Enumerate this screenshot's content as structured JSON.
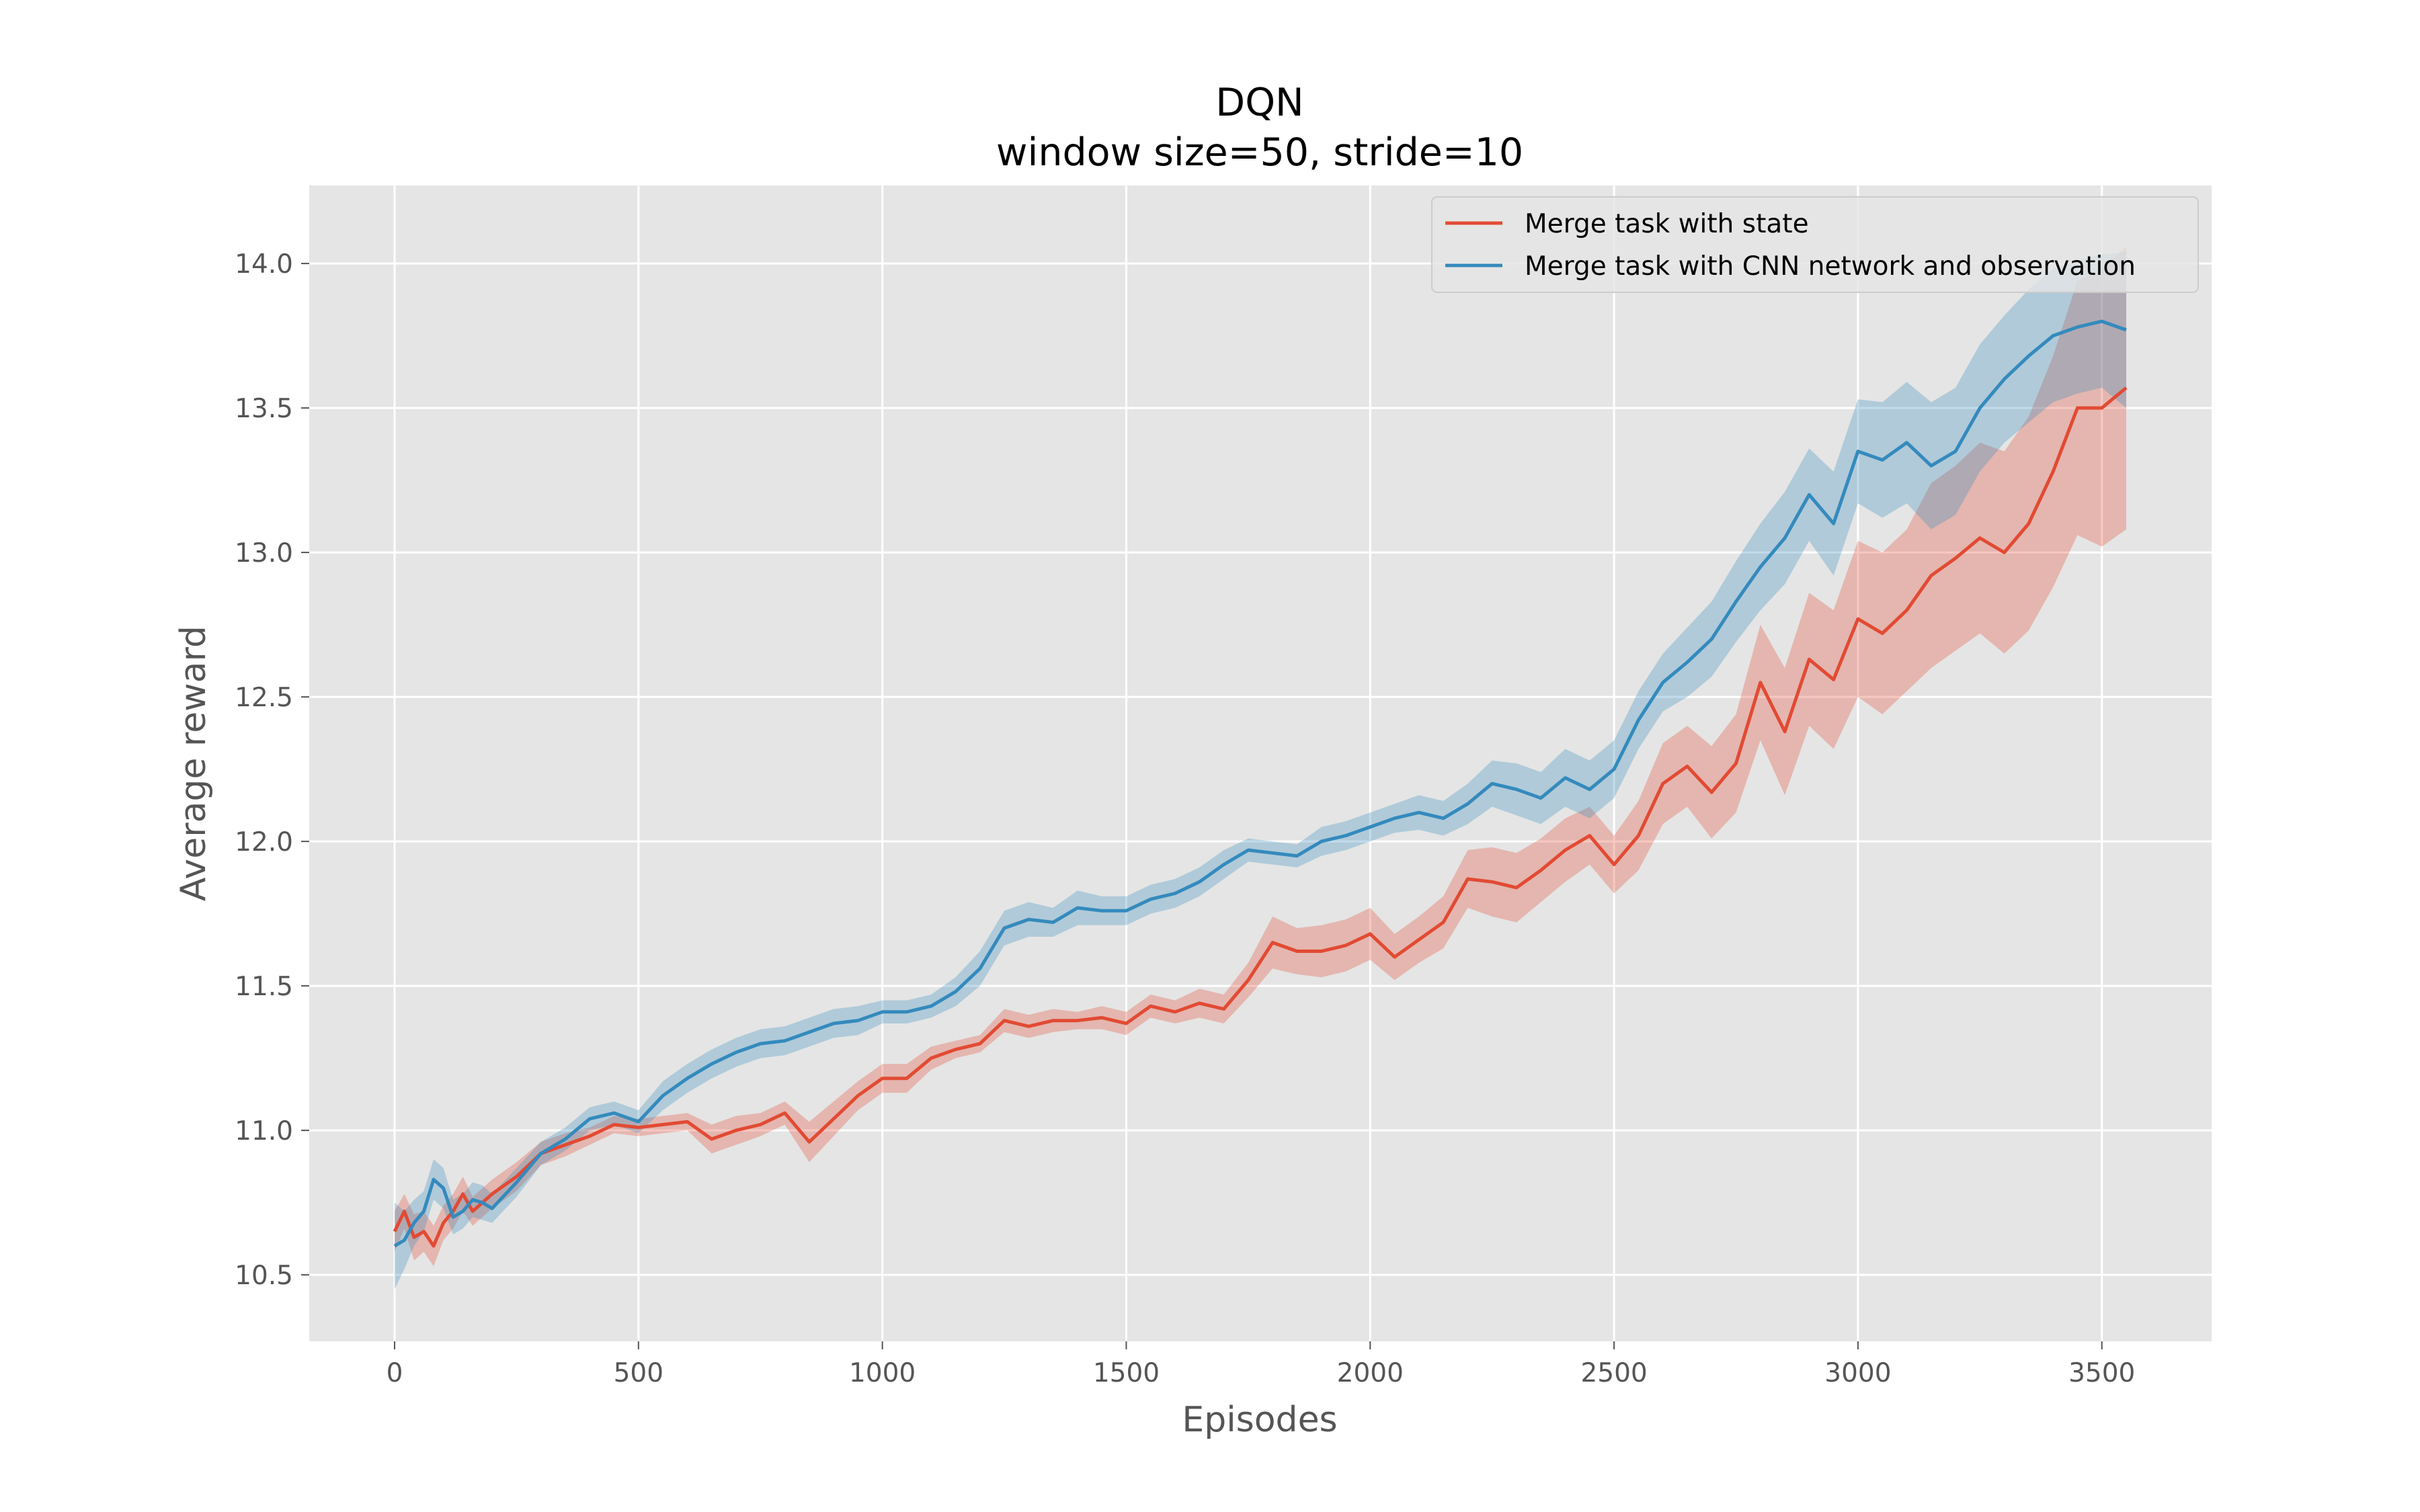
{
  "chart_data": {
    "type": "line",
    "title": "DQN",
    "subtitle": "window size=50, stride=10",
    "xlabel": "Episodes",
    "ylabel": "Average reward",
    "xlim": [
      -175,
      3725
    ],
    "ylim": [
      10.27,
      14.27
    ],
    "xticks": [
      0,
      500,
      1000,
      1500,
      2000,
      2500,
      3000,
      3500
    ],
    "yticks": [
      10.5,
      11.0,
      11.5,
      12.0,
      12.5,
      13.0,
      13.5,
      14.0
    ],
    "xtick_labels": [
      "0",
      "500",
      "1000",
      "1500",
      "2000",
      "2500",
      "3000",
      "3500"
    ],
    "ytick_labels": [
      "10.5",
      "11.0",
      "11.5",
      "12.0",
      "12.5",
      "13.0",
      "13.5",
      "14.0"
    ],
    "grid": true,
    "legend_position": "top-right",
    "series": [
      {
        "name": "Merge task with state",
        "color": "#e24a33",
        "band_color": "#e24a33",
        "x": [
          0,
          20,
          40,
          60,
          80,
          100,
          120,
          140,
          160,
          180,
          200,
          250,
          300,
          350,
          400,
          450,
          500,
          550,
          600,
          650,
          700,
          750,
          800,
          850,
          900,
          950,
          1000,
          1050,
          1100,
          1150,
          1200,
          1250,
          1300,
          1350,
          1400,
          1450,
          1500,
          1550,
          1600,
          1650,
          1700,
          1750,
          1800,
          1850,
          1900,
          1950,
          2000,
          2050,
          2100,
          2150,
          2200,
          2250,
          2300,
          2350,
          2400,
          2450,
          2500,
          2550,
          2600,
          2650,
          2700,
          2750,
          2800,
          2850,
          2900,
          2950,
          3000,
          3050,
          3100,
          3150,
          3200,
          3250,
          3300,
          3350,
          3400,
          3450,
          3500,
          3550
        ],
        "y": [
          10.65,
          10.72,
          10.63,
          10.65,
          10.6,
          10.68,
          10.72,
          10.78,
          10.72,
          10.75,
          10.78,
          10.84,
          10.92,
          10.95,
          10.98,
          11.02,
          11.01,
          11.02,
          11.03,
          10.97,
          11.0,
          11.02,
          11.06,
          10.96,
          11.04,
          11.12,
          11.18,
          11.18,
          11.25,
          11.28,
          11.3,
          11.38,
          11.36,
          11.38,
          11.38,
          11.39,
          11.37,
          11.43,
          11.41,
          11.44,
          11.42,
          11.52,
          11.65,
          11.62,
          11.62,
          11.64,
          11.68,
          11.6,
          11.66,
          11.72,
          11.87,
          11.86,
          11.84,
          11.9,
          11.97,
          12.02,
          11.92,
          12.02,
          12.2,
          12.26,
          12.17,
          12.27,
          12.55,
          12.38,
          12.63,
          12.56,
          12.77,
          12.72,
          12.8,
          12.92,
          12.98,
          13.05,
          13.0,
          13.1,
          13.28,
          13.5,
          13.5,
          13.57
        ],
        "lower": [
          10.58,
          10.66,
          10.55,
          10.58,
          10.53,
          10.62,
          10.66,
          10.72,
          10.67,
          10.7,
          10.73,
          10.79,
          10.88,
          10.91,
          10.95,
          10.99,
          10.98,
          10.99,
          11.0,
          10.92,
          10.95,
          10.98,
          11.02,
          10.89,
          10.98,
          11.07,
          11.13,
          11.13,
          11.21,
          11.25,
          11.27,
          11.34,
          11.32,
          11.34,
          11.35,
          11.35,
          11.33,
          11.39,
          11.37,
          11.39,
          11.37,
          11.46,
          11.56,
          11.54,
          11.53,
          11.55,
          11.59,
          11.52,
          11.58,
          11.63,
          11.77,
          11.74,
          11.72,
          11.79,
          11.86,
          11.92,
          11.82,
          11.9,
          12.06,
          12.12,
          12.01,
          12.1,
          12.35,
          12.16,
          12.4,
          12.32,
          12.5,
          12.44,
          12.52,
          12.6,
          12.66,
          12.72,
          12.65,
          12.73,
          12.88,
          13.06,
          13.02,
          13.08
        ],
        "upper": [
          10.72,
          10.78,
          10.71,
          10.72,
          10.67,
          10.74,
          10.78,
          10.84,
          10.77,
          10.8,
          10.83,
          10.89,
          10.96,
          10.99,
          11.01,
          11.05,
          11.04,
          11.05,
          11.06,
          11.02,
          11.05,
          11.06,
          11.1,
          11.03,
          11.1,
          11.17,
          11.23,
          11.23,
          11.29,
          11.31,
          11.33,
          11.42,
          11.4,
          11.42,
          11.41,
          11.43,
          11.41,
          11.47,
          11.45,
          11.49,
          11.47,
          11.58,
          11.74,
          11.7,
          11.71,
          11.73,
          11.77,
          11.68,
          11.74,
          11.81,
          11.97,
          11.98,
          11.96,
          12.01,
          12.08,
          12.12,
          12.02,
          12.14,
          12.34,
          12.4,
          12.33,
          12.44,
          12.75,
          12.6,
          12.86,
          12.8,
          13.04,
          13.0,
          13.08,
          13.24,
          13.3,
          13.38,
          13.35,
          13.47,
          13.68,
          13.94,
          13.98,
          14.06
        ]
      },
      {
        "name": "Merge task with CNN network and observation",
        "color": "#348abd",
        "band_color": "#348abd",
        "x": [
          0,
          20,
          40,
          60,
          80,
          100,
          120,
          140,
          160,
          180,
          200,
          250,
          300,
          350,
          400,
          450,
          500,
          550,
          600,
          650,
          700,
          750,
          800,
          850,
          900,
          950,
          1000,
          1050,
          1100,
          1150,
          1200,
          1250,
          1300,
          1350,
          1400,
          1450,
          1500,
          1550,
          1600,
          1650,
          1700,
          1750,
          1800,
          1850,
          1900,
          1950,
          2000,
          2050,
          2100,
          2150,
          2200,
          2250,
          2300,
          2350,
          2400,
          2450,
          2500,
          2550,
          2600,
          2650,
          2700,
          2750,
          2800,
          2850,
          2900,
          2950,
          3000,
          3050,
          3100,
          3150,
          3200,
          3250,
          3300,
          3350,
          3400,
          3450,
          3500,
          3550
        ],
        "y": [
          10.6,
          10.62,
          10.68,
          10.72,
          10.83,
          10.8,
          10.7,
          10.72,
          10.76,
          10.75,
          10.73,
          10.82,
          10.92,
          10.97,
          11.04,
          11.06,
          11.03,
          11.12,
          11.18,
          11.23,
          11.27,
          11.3,
          11.31,
          11.34,
          11.37,
          11.38,
          11.41,
          11.41,
          11.43,
          11.48,
          11.56,
          11.7,
          11.73,
          11.72,
          11.77,
          11.76,
          11.76,
          11.8,
          11.82,
          11.86,
          11.92,
          11.97,
          11.96,
          11.95,
          12.0,
          12.02,
          12.05,
          12.08,
          12.1,
          12.08,
          12.13,
          12.2,
          12.18,
          12.15,
          12.22,
          12.18,
          12.25,
          12.42,
          12.55,
          12.62,
          12.7,
          12.83,
          12.95,
          13.05,
          13.2,
          13.1,
          13.35,
          13.32,
          13.38,
          13.3,
          13.35,
          13.5,
          13.6,
          13.68,
          13.75,
          13.78,
          13.8,
          13.77
        ],
        "lower": [
          10.45,
          10.52,
          10.6,
          10.65,
          10.76,
          10.73,
          10.64,
          10.66,
          10.7,
          10.69,
          10.68,
          10.77,
          10.88,
          10.93,
          11.0,
          11.02,
          10.99,
          11.07,
          11.13,
          11.18,
          11.22,
          11.25,
          11.26,
          11.29,
          11.32,
          11.33,
          11.37,
          11.37,
          11.39,
          11.43,
          11.5,
          11.64,
          11.67,
          11.67,
          11.71,
          11.71,
          11.71,
          11.75,
          11.77,
          11.81,
          11.87,
          11.93,
          11.92,
          11.91,
          11.95,
          11.97,
          12.0,
          12.03,
          12.04,
          12.02,
          12.06,
          12.12,
          12.09,
          12.06,
          12.12,
          12.08,
          12.15,
          12.32,
          12.45,
          12.5,
          12.57,
          12.69,
          12.8,
          12.89,
          13.04,
          12.92,
          13.17,
          13.12,
          13.17,
          13.08,
          13.13,
          13.28,
          13.38,
          13.45,
          13.52,
          13.55,
          13.57,
          13.5
        ],
        "upper": [
          10.75,
          10.72,
          10.76,
          10.79,
          10.9,
          10.87,
          10.76,
          10.78,
          10.82,
          10.81,
          10.78,
          10.87,
          10.96,
          11.01,
          11.08,
          11.1,
          11.07,
          11.17,
          11.23,
          11.28,
          11.32,
          11.35,
          11.36,
          11.39,
          11.42,
          11.43,
          11.45,
          11.45,
          11.47,
          11.53,
          11.62,
          11.76,
          11.79,
          11.77,
          11.83,
          11.81,
          11.81,
          11.85,
          11.87,
          11.91,
          11.97,
          12.01,
          12.0,
          11.99,
          12.05,
          12.07,
          12.1,
          12.13,
          12.16,
          12.14,
          12.2,
          12.28,
          12.27,
          12.24,
          12.32,
          12.28,
          12.35,
          12.52,
          12.65,
          12.74,
          12.83,
          12.97,
          13.1,
          13.21,
          13.36,
          13.28,
          13.53,
          13.52,
          13.59,
          13.52,
          13.57,
          13.72,
          13.82,
          13.91,
          13.98,
          14.01,
          14.03,
          14.04
        ]
      }
    ]
  }
}
